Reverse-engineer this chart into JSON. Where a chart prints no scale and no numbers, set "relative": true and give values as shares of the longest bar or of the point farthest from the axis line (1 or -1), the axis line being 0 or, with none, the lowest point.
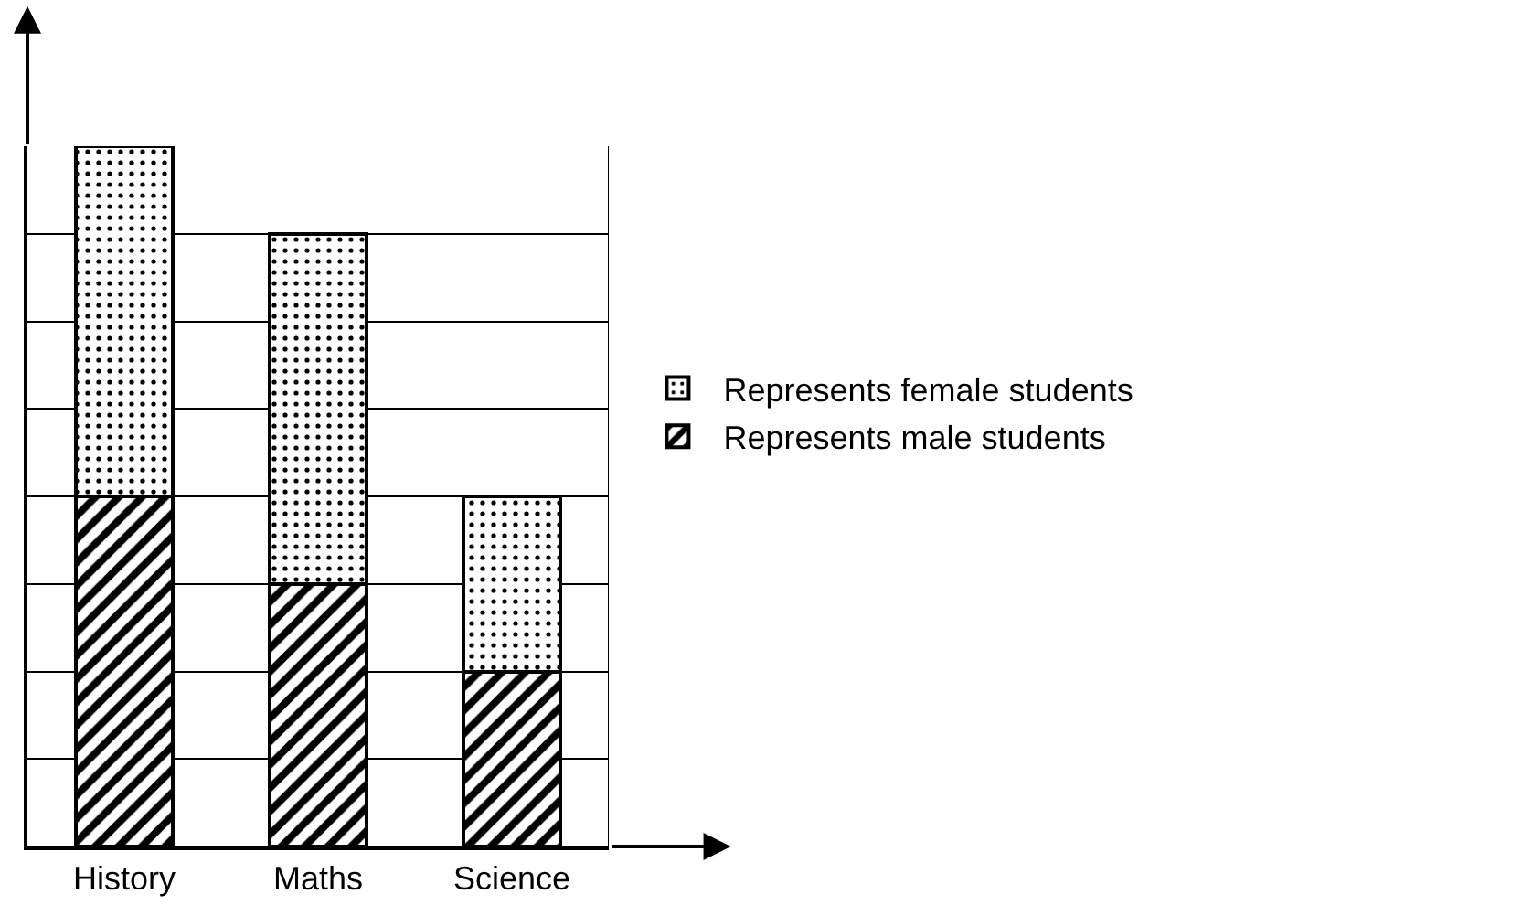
{
  "chart_data": {
    "type": "bar",
    "relative": true,
    "stacked": true,
    "categories": [
      "History",
      "Maths",
      "Science"
    ],
    "series": [
      {
        "name": "Represents male students",
        "color": "#000000",
        "values": [
          0.5,
          0.375,
          0.25
        ]
      },
      {
        "name": "Represents female students",
        "color": "#000000",
        "values": [
          0.5,
          0.5,
          0.25
        ]
      }
    ],
    "grid": "y",
    "legend": "right"
  }
}
